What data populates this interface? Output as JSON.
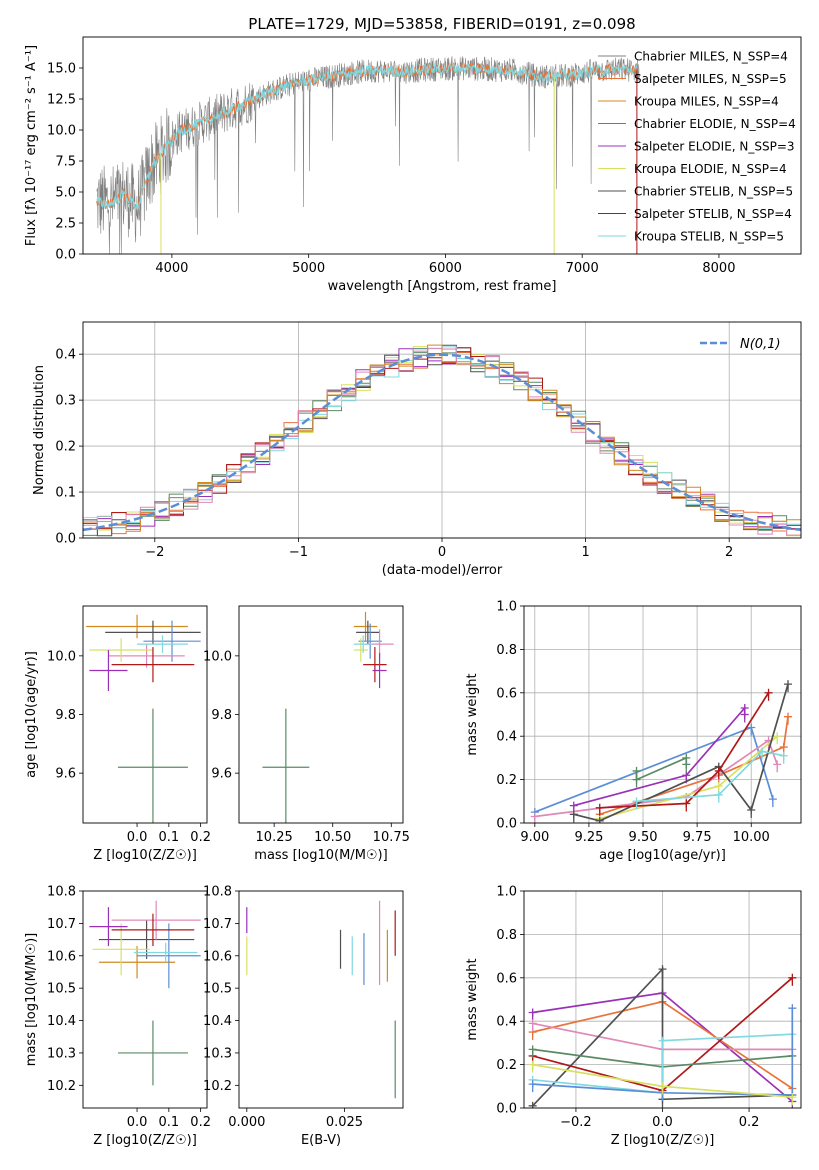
{
  "chart_data": [
    {
      "id": "spectrum",
      "type": "line",
      "title": "PLATE=1729, MJD=53858, FIBERID=0191, z=0.098",
      "xlabel": "wavelength [Angstrom, rest frame]",
      "ylabel": "Flux [fλ 10⁻¹⁷ erg cm⁻² s⁻¹ A⁻¹]",
      "xlim": [
        3350,
        8600
      ],
      "ylim": [
        0,
        17.5
      ],
      "xticks": [
        4000,
        5000,
        6000,
        7000,
        8000
      ],
      "yticks": [
        0.0,
        2.5,
        5.0,
        7.5,
        10.0,
        12.5,
        15.0
      ],
      "legend_position": "right",
      "grid": false,
      "continuum_x": [
        3450,
        3550,
        3650,
        3750,
        3850,
        3950,
        4050,
        4150,
        4300,
        4500,
        4700,
        4900,
        5100,
        5300,
        5500,
        5700,
        5900,
        6100,
        6300,
        6500,
        6700,
        6900,
        7100,
        7300,
        7400
      ],
      "continuum_y": [
        4.2,
        4.0,
        4.8,
        3.8,
        7.0,
        8.5,
        9.8,
        10.3,
        11.0,
        12.0,
        13.0,
        13.8,
        14.2,
        14.6,
        14.8,
        14.7,
        14.9,
        15.0,
        14.9,
        14.8,
        14.3,
        14.4,
        14.8,
        14.9,
        14.8
      ],
      "series": [
        {
          "name": "Chabrier MILES, N_SSP=4",
          "color": "#808080"
        },
        {
          "name": "Salpeter MILES, N_SSP=5",
          "color": "#e8743b"
        },
        {
          "name": "Kroupa MILES, N_SSP=4",
          "color": "#d08a20"
        },
        {
          "name": "Chabrier ELODIE, N_SSP=4",
          "color": "#5a8a64"
        },
        {
          "name": "Salpeter ELODIE, N_SSP=3",
          "color": "#9b30b8"
        },
        {
          "name": "Kroupa ELODIE, N_SSP=4",
          "color": "#d8e060"
        },
        {
          "name": "Chabrier STELIB, N_SSP=5",
          "color": "#505050"
        },
        {
          "name": "Salpeter STELIB, N_SSP=4",
          "color": "#b01818"
        },
        {
          "name": "Kroupa STELIB, N_SSP=5",
          "color": "#80d8e0"
        }
      ]
    },
    {
      "id": "residuals",
      "type": "line",
      "xlabel": "(data-model)/error",
      "ylabel": "Normed distribution",
      "xlim": [
        -2.5,
        2.5
      ],
      "ylim": [
        0,
        0.47
      ],
      "xticks": [
        -2,
        -1,
        0,
        1,
        2
      ],
      "yticks": [
        0.0,
        0.1,
        0.2,
        0.3,
        0.4
      ],
      "grid": true,
      "legend_position": "top-right",
      "legend_label": "N(0,1)",
      "gaussian_color": "#5b8ed6",
      "bin_width": 0.1,
      "bin_start": -2.5,
      "series_colors": [
        "#e8743b",
        "#5a8a64",
        "#9b30b8",
        "#d8e060",
        "#505050",
        "#b01818",
        "#80d8e0",
        "#e088b8",
        "#d08a20"
      ]
    },
    {
      "id": "age_vs_Z",
      "type": "scatter",
      "xlabel": "Z [log10(Z/Z☉)]",
      "ylabel": "age  [log10(age/yr)]",
      "xlim": [
        -0.17,
        0.22
      ],
      "ylim": [
        9.43,
        10.17
      ],
      "xticks": [
        0.0,
        0.1,
        0.2
      ],
      "yticks": [
        9.6,
        9.8,
        10.0
      ],
      "points": [
        {
          "x": 0.05,
          "y": 9.62,
          "xerr": 0.11,
          "yerr": 0.2,
          "color": "#5a8a64"
        },
        {
          "x": 0.0,
          "y": 10.1,
          "xerr": 0.16,
          "yerr": 0.04,
          "color": "#d08a20"
        },
        {
          "x": 0.05,
          "y": 10.08,
          "xerr": 0.15,
          "yerr": 0.04,
          "color": "#505050"
        },
        {
          "x": 0.11,
          "y": 10.05,
          "xerr": 0.09,
          "yerr": 0.07,
          "color": "#5b8ed6"
        },
        {
          "x": 0.03,
          "y": 10.0,
          "xerr": 0.12,
          "yerr": 0.04,
          "color": "#e088b8"
        },
        {
          "x": -0.05,
          "y": 10.02,
          "xerr": 0.1,
          "yerr": 0.04,
          "color": "#d8e060"
        },
        {
          "x": 0.05,
          "y": 9.97,
          "xerr": 0.13,
          "yerr": 0.06,
          "color": "#b01818"
        },
        {
          "x": -0.09,
          "y": 9.95,
          "xerr": 0.06,
          "yerr": 0.07,
          "color": "#9b30b8"
        },
        {
          "x": 0.08,
          "y": 10.04,
          "xerr": 0.08,
          "yerr": 0.03,
          "color": "#80d8e0"
        }
      ]
    },
    {
      "id": "age_vs_mass",
      "type": "scatter",
      "xlabel": "mass [log10(M/M☉)]",
      "xlim": [
        10.1,
        10.8
      ],
      "ylim": [
        9.43,
        10.17
      ],
      "xticks": [
        10.25,
        10.5,
        10.75
      ],
      "xticklabels": [
        "10.25",
        "10.50",
        "10.75"
      ],
      "yticks": [
        9.6,
        9.8,
        10.0
      ],
      "points": [
        {
          "x": 10.3,
          "y": 9.62,
          "xerr": 0.1,
          "yerr": 0.2,
          "color": "#5a8a64"
        },
        {
          "x": 10.64,
          "y": 10.1,
          "xerr": 0.05,
          "yerr": 0.05,
          "color": "#d08a20"
        },
        {
          "x": 10.65,
          "y": 10.08,
          "xerr": 0.05,
          "yerr": 0.04,
          "color": "#505050"
        },
        {
          "x": 10.66,
          "y": 10.05,
          "xerr": 0.05,
          "yerr": 0.06,
          "color": "#5b8ed6"
        },
        {
          "x": 10.7,
          "y": 10.04,
          "xerr": 0.06,
          "yerr": 0.05,
          "color": "#e088b8"
        },
        {
          "x": 10.62,
          "y": 10.02,
          "xerr": 0.03,
          "yerr": 0.04,
          "color": "#d8e060"
        },
        {
          "x": 10.68,
          "y": 9.97,
          "xerr": 0.05,
          "yerr": 0.06,
          "color": "#b01818"
        },
        {
          "x": 10.7,
          "y": 9.95,
          "xerr": 0.03,
          "yerr": 0.06,
          "color": "#9b30b8"
        },
        {
          "x": 10.63,
          "y": 10.04,
          "xerr": 0.04,
          "yerr": 0.03,
          "color": "#80d8e0"
        }
      ]
    },
    {
      "id": "mw_vs_age",
      "type": "line",
      "xlabel": "age  [log10(age/yr)]",
      "ylabel": "mass weight",
      "xlim": [
        8.95,
        10.23
      ],
      "ylim": [
        0,
        1
      ],
      "xticks": [
        9.0,
        9.25,
        9.5,
        9.75,
        10.0
      ],
      "xticklabels": [
        "9.00",
        "9.25",
        "9.50",
        "9.75",
        "10.00"
      ],
      "yticks": [
        0.0,
        0.2,
        0.4,
        0.6,
        0.8,
        1.0
      ],
      "grid": true,
      "series": [
        {
          "color": "#5b8ed6",
          "x": [
            9.0,
            10.0,
            10.1
          ],
          "y": [
            0.05,
            0.44,
            0.11
          ]
        },
        {
          "color": "#e8743b",
          "x": [
            9.3,
            9.85,
            10.15,
            10.17
          ],
          "y": [
            0.04,
            0.22,
            0.35,
            0.49
          ]
        },
        {
          "color": "#9b30b8",
          "x": [
            9.18,
            9.7,
            9.97,
            9.97
          ],
          "y": [
            0.08,
            0.22,
            0.53,
            0.5
          ]
        },
        {
          "color": "#e088b8",
          "x": [
            9.0,
            9.7,
            10.08,
            10.12
          ],
          "y": [
            0.03,
            0.12,
            0.38,
            0.27
          ]
        },
        {
          "color": "#5a8a64",
          "x": [
            9.47,
            9.47,
            9.7,
            9.7
          ],
          "y": [
            0.24,
            0.2,
            0.3,
            0.27
          ]
        },
        {
          "color": "#d8e060",
          "x": [
            9.3,
            9.85,
            10.12
          ],
          "y": [
            0.02,
            0.17,
            0.4
          ]
        },
        {
          "color": "#505050",
          "x": [
            9.18,
            9.3,
            9.85,
            10.0,
            10.17
          ],
          "y": [
            0.04,
            0.01,
            0.26,
            0.06,
            0.64
          ]
        },
        {
          "color": "#b01818",
          "x": [
            9.3,
            9.7,
            9.85,
            10.08
          ],
          "y": [
            0.07,
            0.09,
            0.24,
            0.6
          ]
        },
        {
          "color": "#80d8e0",
          "x": [
            9.47,
            9.85,
            10.05,
            10.15
          ],
          "y": [
            0.1,
            0.13,
            0.33,
            0.31
          ]
        }
      ]
    },
    {
      "id": "mass_vs_Z",
      "type": "scatter",
      "xlabel": "Z [log10(Z/Z☉)]",
      "ylabel": "mass [log10(M/M☉)]",
      "xlim": [
        -0.17,
        0.22
      ],
      "ylim": [
        10.13,
        10.8
      ],
      "xticks": [
        0.0,
        0.1,
        0.2
      ],
      "yticks": [
        10.2,
        10.3,
        10.4,
        10.5,
        10.6,
        10.7,
        10.8
      ],
      "points": [
        {
          "x": 0.05,
          "y": 10.3,
          "xerr": 0.11,
          "yerr": 0.1,
          "color": "#5a8a64"
        },
        {
          "x": 0.0,
          "y": 10.58,
          "xerr": 0.12,
          "yerr": 0.05,
          "color": "#d08a20"
        },
        {
          "x": 0.03,
          "y": 10.65,
          "xerr": 0.15,
          "yerr": 0.06,
          "color": "#505050"
        },
        {
          "x": 0.1,
          "y": 10.6,
          "xerr": 0.1,
          "yerr": 0.1,
          "color": "#5b8ed6"
        },
        {
          "x": 0.06,
          "y": 10.71,
          "xerr": 0.14,
          "yerr": 0.06,
          "color": "#e088b8"
        },
        {
          "x": -0.05,
          "y": 10.62,
          "xerr": 0.09,
          "yerr": 0.08,
          "color": "#d8e060"
        },
        {
          "x": 0.05,
          "y": 10.68,
          "xerr": 0.13,
          "yerr": 0.05,
          "color": "#b01818"
        },
        {
          "x": -0.09,
          "y": 10.69,
          "xerr": 0.06,
          "yerr": 0.06,
          "color": "#9b30b8"
        },
        {
          "x": 0.09,
          "y": 10.61,
          "xerr": 0.1,
          "yerr": 0.03,
          "color": "#80d8e0"
        }
      ]
    },
    {
      "id": "mass_vs_EBV",
      "type": "scatter",
      "xlabel": "E(B-V)",
      "xlim": [
        -0.002,
        0.04
      ],
      "ylim": [
        10.13,
        10.8
      ],
      "xticks": [
        0.0,
        0.025
      ],
      "xticklabels": [
        "0.000",
        "0.025"
      ],
      "yticks": [
        10.2,
        10.3,
        10.4,
        10.5,
        10.6,
        10.7,
        10.8
      ],
      "points": [
        {
          "x": 0.038,
          "y": 10.28,
          "yerr": 0.12,
          "color": "#5a8a64"
        },
        {
          "x": 0.0,
          "y": 10.6,
          "yerr": 0.06,
          "color": "#d8e060"
        },
        {
          "x": 0.0,
          "y": 10.71,
          "yerr": 0.04,
          "color": "#9b30b8"
        },
        {
          "x": 0.024,
          "y": 10.62,
          "yerr": 0.06,
          "color": "#505050"
        },
        {
          "x": 0.027,
          "y": 10.6,
          "yerr": 0.06,
          "color": "#80d8e0"
        },
        {
          "x": 0.03,
          "y": 10.59,
          "yerr": 0.08,
          "color": "#5b8ed6"
        },
        {
          "x": 0.034,
          "y": 10.64,
          "yerr": 0.13,
          "color": "#e088b8"
        },
        {
          "x": 0.036,
          "y": 10.6,
          "yerr": 0.08,
          "color": "#d08a20"
        },
        {
          "x": 0.038,
          "y": 10.67,
          "yerr": 0.07,
          "color": "#b01818"
        }
      ]
    },
    {
      "id": "mw_vs_Z",
      "type": "line",
      "xlabel": "Z [log10(Z/Z☉)]",
      "ylabel": "mass weight",
      "xlim": [
        -0.32,
        0.32
      ],
      "ylim": [
        0,
        1
      ],
      "xticks": [
        -0.2,
        0.0,
        0.2
      ],
      "xticklabels": [
        "−0.2",
        "0.0",
        "0.2"
      ],
      "yticks": [
        0.0,
        0.2,
        0.4,
        0.6,
        0.8,
        1.0
      ],
      "grid": true,
      "series": [
        {
          "color": "#9b30b8",
          "x": [
            -0.3,
            0.0,
            0.3
          ],
          "y": [
            0.44,
            0.53,
            0.03
          ]
        },
        {
          "color": "#e8743b",
          "x": [
            -0.3,
            0.0,
            0.3
          ],
          "y": [
            0.35,
            0.49,
            0.09
          ]
        },
        {
          "color": "#e088b8",
          "x": [
            -0.3,
            0.0,
            0.3
          ],
          "y": [
            0.39,
            0.27,
            0.27
          ]
        },
        {
          "color": "#505050",
          "x": [
            -0.3,
            0.0,
            0.0,
            0.3
          ],
          "y": [
            0.01,
            0.64,
            0.04,
            0.06
          ]
        },
        {
          "color": "#b01818",
          "x": [
            -0.3,
            0.0,
            0.3
          ],
          "y": [
            0.24,
            0.08,
            0.6
          ]
        },
        {
          "color": "#5a8a64",
          "x": [
            -0.3,
            0.0,
            0.3
          ],
          "y": [
            0.27,
            0.19,
            0.24
          ]
        },
        {
          "color": "#80d8e0",
          "x": [
            -0.3,
            0.0,
            0.0,
            0.3
          ],
          "y": [
            0.13,
            0.07,
            0.31,
            0.34
          ]
        },
        {
          "color": "#5b8ed6",
          "x": [
            -0.3,
            0.0,
            0.3,
            0.3
          ],
          "y": [
            0.11,
            0.07,
            0.06,
            0.46
          ]
        },
        {
          "color": "#d8e060",
          "x": [
            -0.3,
            0.0,
            0.3
          ],
          "y": [
            0.2,
            0.1,
            0.05
          ]
        }
      ]
    }
  ]
}
